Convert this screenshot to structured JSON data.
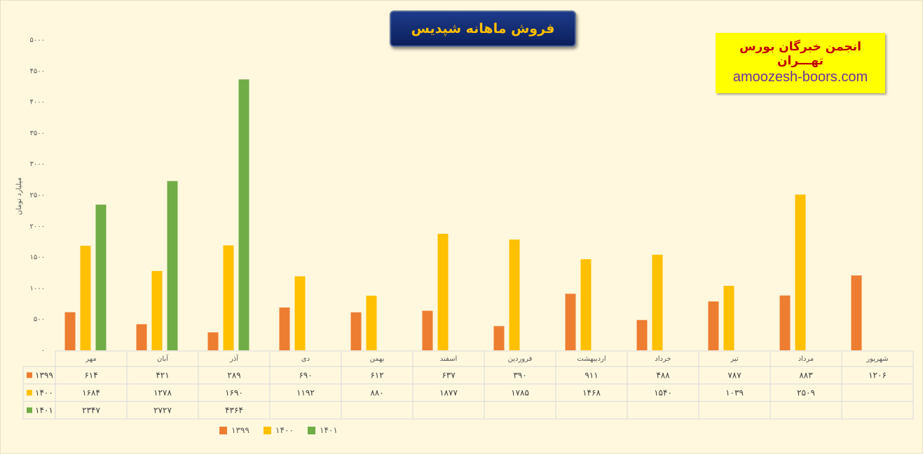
{
  "header": {
    "title": "فروش ماهانه شپدیس",
    "badge_name": "انجمن خبرگان بورس تهـــران",
    "badge_site": "amoozesh-boors.com"
  },
  "chart_data": {
    "type": "bar",
    "ylabel": "میلیارد تومان",
    "ylim": [
      0,
      5000
    ],
    "yticks": [
      "۰",
      "۵۰۰",
      "۱۰۰۰",
      "۱۵۰۰",
      "۲۰۰۰",
      "۲۵۰۰",
      "۳۰۰۰",
      "۳۵۰۰",
      "۴۰۰۰",
      "۴۵۰۰",
      "۵۰۰۰"
    ],
    "ytick_values": [
      0,
      500,
      1000,
      1500,
      2000,
      2500,
      3000,
      3500,
      4000,
      4500,
      5000
    ],
    "categories": [
      "مهر",
      "آبان",
      "آذر",
      "دی",
      "بهمن",
      "اسفند",
      "فروردین",
      "اردیبهشت",
      "خرداد",
      "تیر",
      "مرداد",
      "شهریور"
    ],
    "series": [
      {
        "name": "۱۳۹۹",
        "color": "#ed7d31",
        "values": [
          614,
          421,
          289,
          690,
          612,
          637,
          390,
          911,
          488,
          787,
          883,
          1206
        ],
        "labels": [
          "۶۱۴",
          "۴۲۱",
          "۲۸۹",
          "۶۹۰",
          "۶۱۲",
          "۶۳۷",
          "۳۹۰",
          "۹۱۱",
          "۴۸۸",
          "۷۸۷",
          "۸۸۳",
          "۱۲۰۶"
        ]
      },
      {
        "name": "۱۴۰۰",
        "color": "#ffc000",
        "values": [
          1684,
          1278,
          1690,
          1192,
          880,
          1877,
          1785,
          1468,
          1540,
          1039,
          2509,
          null
        ],
        "labels": [
          "۱۶۸۴",
          "۱۲۷۸",
          "۱۶۹۰",
          "۱۱۹۲",
          "۸۸۰",
          "۱۸۷۷",
          "۱۷۸۵",
          "۱۴۶۸",
          "۱۵۴۰",
          "۱۰۳۹",
          "۲۵۰۹",
          ""
        ]
      },
      {
        "name": "۱۴۰۱",
        "color": "#70ad47",
        "values": [
          2347,
          2727,
          4364,
          null,
          null,
          null,
          null,
          null,
          null,
          null,
          null,
          null
        ],
        "labels": [
          "۲۳۴۷",
          "۲۷۲۷",
          "۴۳۶۴",
          "",
          "",
          "",
          "",
          "",
          "",
          "",
          "",
          ""
        ]
      }
    ],
    "legend_position": "bottom",
    "grid": false,
    "data_table": true
  }
}
